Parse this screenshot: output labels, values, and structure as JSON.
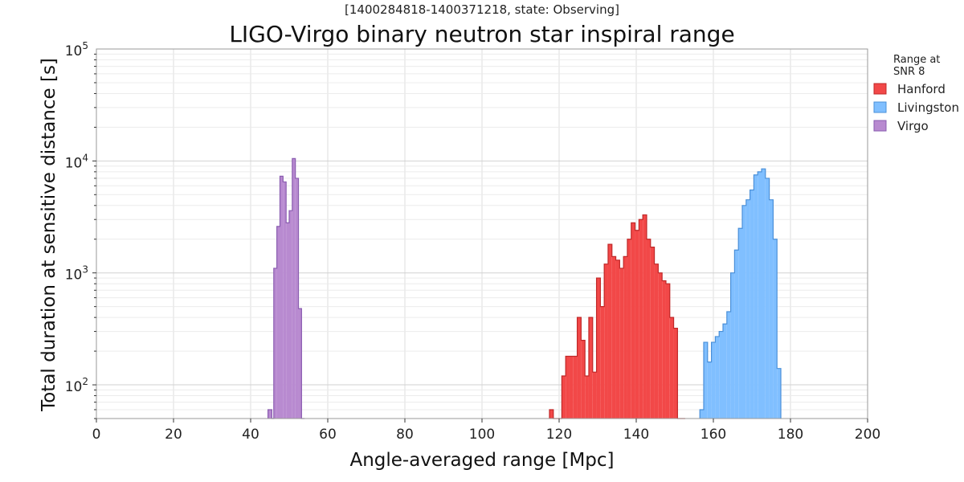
{
  "chart_data": {
    "type": "histogram",
    "subtitle": "[1400284818-1400371218, state: Observing]",
    "title": "LIGO-Virgo binary neutron star inspiral range",
    "xlabel": "Angle-averaged range [Mpc]",
    "ylabel": "Total duration at sensitive distance [s]",
    "xlim": [
      0,
      200
    ],
    "ylim": [
      50,
      100000
    ],
    "y_scale": "log",
    "x_ticks": [
      0,
      20,
      40,
      60,
      80,
      100,
      120,
      140,
      160,
      180,
      200
    ],
    "y_ticks": [
      {
        "value": 100,
        "label": "10",
        "exp": "2"
      },
      {
        "value": 1000,
        "label": "10",
        "exp": "3"
      },
      {
        "value": 10000,
        "label": "10",
        "exp": "4"
      },
      {
        "value": 100000,
        "label": "10",
        "exp": "5"
      }
    ],
    "grid": true,
    "legend": {
      "title_line1": "Range at",
      "title_line2": "SNR 8",
      "placement": "outside right"
    },
    "series": [
      {
        "name": "Hanford",
        "color": "#f24848",
        "edge": "#c02828",
        "bin_edges": [
          117.5,
          118.5,
          120.7,
          121.7,
          122.7,
          123.7,
          124.7,
          125.7,
          126.7,
          127.7,
          128.7,
          129.7,
          130.7,
          131.7,
          132.7,
          133.7,
          134.7,
          135.7,
          136.7,
          137.7,
          138.7,
          139.7,
          140.7,
          141.7,
          142.7,
          143.7,
          144.7,
          145.7,
          146.7,
          147.7,
          148.7,
          149.7,
          150.7,
          151.7,
          152.7
        ],
        "counts": [
          60,
          0,
          120,
          180,
          180,
          180,
          400,
          250,
          120,
          400,
          130,
          900,
          500,
          1200,
          1800,
          1400,
          1300,
          1100,
          1400,
          2000,
          2800,
          2400,
          3000,
          3300,
          2000,
          1700,
          1200,
          1000,
          850,
          800,
          400,
          320,
          50,
          50
        ]
      },
      {
        "name": "Livingston",
        "color": "#80bfff",
        "edge": "#4a90d9",
        "bin_edges": [
          156.5,
          157.5,
          158.5,
          159.5,
          160.5,
          161.5,
          162.5,
          163.5,
          164.5,
          165.5,
          166.5,
          167.5,
          168.5,
          169.5,
          170.5,
          171.5,
          172.5,
          173.5,
          174.5,
          175.5,
          176.5,
          177.5
        ],
        "counts": [
          60,
          240,
          160,
          240,
          270,
          300,
          350,
          450,
          1000,
          1600,
          2500,
          4000,
          4500,
          5500,
          7500,
          8000,
          8500,
          7000,
          4500,
          2000,
          140
        ]
      },
      {
        "name": "Virgo",
        "color": "#b88ad0",
        "edge": "#8a5cb0",
        "bin_edges": [
          44.5,
          45.5,
          46.0,
          46.8,
          47.6,
          48.4,
          49.2,
          50.0,
          50.8,
          51.6,
          52.4,
          53.2,
          54.0
        ],
        "counts": [
          60,
          0,
          1100,
          2600,
          7300,
          6500,
          2800,
          3600,
          10500,
          7000,
          480,
          50
        ]
      }
    ]
  }
}
